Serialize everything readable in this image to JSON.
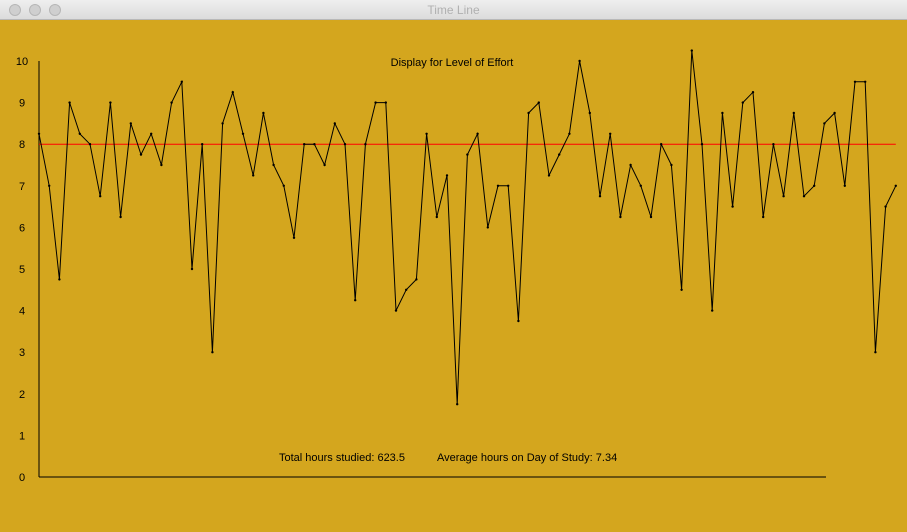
{
  "window": {
    "title": "Time Line"
  },
  "chart_data": {
    "type": "line",
    "title": "Display for Level of Effort",
    "xlabel": "",
    "ylabel": "",
    "ylim": [
      0,
      10
    ],
    "yticks": [
      "0",
      "1",
      "2",
      "3",
      "4",
      "5",
      "6",
      "7",
      "8",
      "9",
      "10"
    ],
    "grid": false,
    "reference_line": {
      "value": 8,
      "color": "#ff0000"
    },
    "series_color": "#000000",
    "series": [
      {
        "values": [
          8.25,
          7,
          4.75,
          9,
          8.25,
          8,
          6.75,
          9,
          6.25,
          8.5,
          7.75,
          8.25,
          7.5,
          9,
          9.5,
          5,
          8,
          3,
          8.5,
          9.25,
          8.25,
          7.25,
          8.75,
          7.5,
          7,
          5.75,
          8,
          8,
          7.5,
          8.5,
          8,
          4.25,
          8,
          9,
          9,
          4,
          4.5,
          4.75,
          8.25,
          6.25,
          7.25,
          1.75,
          7.75,
          8.25,
          6,
          7,
          7,
          3.75,
          8.75,
          9,
          7.25,
          7.75,
          8.25,
          10,
          8.75,
          6.75,
          8.25,
          6.25,
          7.5,
          7,
          6.25,
          8,
          7.5,
          4.5,
          10.25,
          8,
          4,
          8.75,
          6.5,
          9,
          9.25,
          6.25,
          8,
          6.75,
          8.75,
          6.75,
          7,
          8.5,
          8.75,
          7,
          9.5,
          9.5,
          3,
          6.5,
          7
        ]
      }
    ],
    "annotations": {
      "total_label": "Total hours studied: 623.5",
      "average_label": "Average hours on Day of Study:  7.34"
    }
  }
}
